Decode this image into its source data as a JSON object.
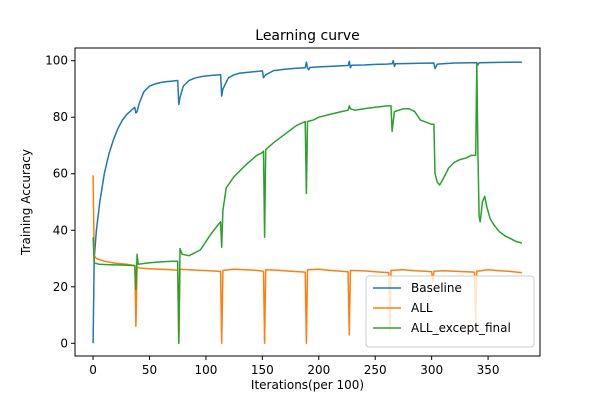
{
  "chart_data": {
    "type": "line",
    "title": "Learning curve",
    "xlabel": "Iterations(per 100)",
    "ylabel": "Training Accuracy",
    "xlim": [
      -16,
      396
    ],
    "ylim": [
      -4.5,
      104.5
    ],
    "xticks": [
      0,
      50,
      100,
      150,
      200,
      250,
      300,
      350
    ],
    "yticks": [
      0,
      20,
      40,
      60,
      80,
      100
    ],
    "legend_position": "lower-right",
    "grid": false,
    "series": [
      {
        "name": "Baseline",
        "color": "#1f77b4",
        "points": [
          [
            0,
            0
          ],
          [
            1,
            30
          ],
          [
            3,
            40
          ],
          [
            6,
            50
          ],
          [
            10,
            60
          ],
          [
            14,
            67
          ],
          [
            18,
            72
          ],
          [
            22,
            76
          ],
          [
            26,
            79
          ],
          [
            30,
            81
          ],
          [
            34,
            82.5
          ],
          [
            37,
            83.5
          ],
          [
            38,
            81.5
          ],
          [
            39,
            82
          ],
          [
            41,
            85
          ],
          [
            45,
            89
          ],
          [
            50,
            91
          ],
          [
            55,
            91.8
          ],
          [
            60,
            92.3
          ],
          [
            65,
            92.6
          ],
          [
            70,
            92.8
          ],
          [
            75,
            93
          ],
          [
            76,
            84.5
          ],
          [
            77,
            87
          ],
          [
            80,
            91
          ],
          [
            85,
            93
          ],
          [
            90,
            93.8
          ],
          [
            95,
            94.3
          ],
          [
            100,
            94.6
          ],
          [
            105,
            94.8
          ],
          [
            113,
            95
          ],
          [
            114,
            87.5
          ],
          [
            115,
            90
          ],
          [
            120,
            94
          ],
          [
            125,
            95
          ],
          [
            130,
            95.6
          ],
          [
            140,
            96
          ],
          [
            150,
            96.4
          ],
          [
            151,
            94
          ],
          [
            153,
            95
          ],
          [
            160,
            96.5
          ],
          [
            170,
            97
          ],
          [
            180,
            97.3
          ],
          [
            188,
            97.5
          ],
          [
            189,
            99.5
          ],
          [
            190,
            97.5
          ],
          [
            191,
            96.8
          ],
          [
            192,
            97.6
          ],
          [
            200,
            97.8
          ],
          [
            210,
            98
          ],
          [
            220,
            98.2
          ],
          [
            226,
            98.3
          ],
          [
            227,
            99.8
          ],
          [
            228,
            97.5
          ],
          [
            229,
            98.4
          ],
          [
            240,
            98.5
          ],
          [
            250,
            98.7
          ],
          [
            260,
            98.8
          ],
          [
            265,
            98.9
          ],
          [
            266,
            100
          ],
          [
            267,
            98
          ],
          [
            268,
            98.9
          ],
          [
            280,
            99
          ],
          [
            290,
            99.1
          ],
          [
            302,
            99.2
          ],
          [
            303,
            97.2
          ],
          [
            305,
            98.8
          ],
          [
            320,
            99.2
          ],
          [
            335,
            99.3
          ],
          [
            340,
            99.3
          ],
          [
            341,
            98.5
          ],
          [
            342,
            99.3
          ],
          [
            360,
            99.4
          ],
          [
            380,
            99.5
          ]
        ]
      },
      {
        "name": "ALL",
        "color": "#ff7f0e",
        "points": [
          [
            0,
            59.5
          ],
          [
            1,
            31
          ],
          [
            3,
            30
          ],
          [
            10,
            29
          ],
          [
            20,
            28.3
          ],
          [
            30,
            28
          ],
          [
            37,
            27.5
          ],
          [
            38,
            6
          ],
          [
            39,
            27
          ],
          [
            42,
            26.6
          ],
          [
            50,
            26.4
          ],
          [
            60,
            26.2
          ],
          [
            70,
            26
          ],
          [
            75,
            25.8
          ],
          [
            76,
            0
          ],
          [
            77,
            26.2
          ],
          [
            85,
            26
          ],
          [
            95,
            25.8
          ],
          [
            105,
            25.6
          ],
          [
            113,
            25.4
          ],
          [
            114,
            0
          ],
          [
            115,
            25.8
          ],
          [
            125,
            26.2
          ],
          [
            135,
            26
          ],
          [
            145,
            25.8
          ],
          [
            151,
            25.5
          ],
          [
            152,
            0
          ],
          [
            153,
            26
          ],
          [
            165,
            25.8
          ],
          [
            175,
            25.5
          ],
          [
            188,
            25.2
          ],
          [
            189,
            0
          ],
          [
            190,
            26
          ],
          [
            200,
            26.2
          ],
          [
            210,
            25.8
          ],
          [
            220,
            25.5
          ],
          [
            226,
            25.3
          ],
          [
            227,
            3
          ],
          [
            228,
            25.8
          ],
          [
            240,
            25.6
          ],
          [
            250,
            25.3
          ],
          [
            262,
            25
          ],
          [
            263,
            4.5
          ],
          [
            264,
            25.8
          ],
          [
            275,
            26
          ],
          [
            285,
            25.7
          ],
          [
            295,
            25.5
          ],
          [
            300,
            25.3
          ],
          [
            301,
            21.5
          ],
          [
            302,
            25.5
          ],
          [
            310,
            25.7
          ],
          [
            320,
            25.5
          ],
          [
            330,
            25.3
          ],
          [
            338,
            25.2
          ],
          [
            339,
            6.5
          ],
          [
            340,
            25.5
          ],
          [
            350,
            26
          ],
          [
            360,
            25.7
          ],
          [
            370,
            25.4
          ],
          [
            380,
            25
          ]
        ]
      },
      {
        "name": "ALL_except_final",
        "color": "#2ca02c",
        "points": [
          [
            0,
            37.5
          ],
          [
            1,
            28.5
          ],
          [
            5,
            28
          ],
          [
            15,
            27.8
          ],
          [
            25,
            27.7
          ],
          [
            37,
            27.5
          ],
          [
            38,
            19
          ],
          [
            39,
            31.5
          ],
          [
            40,
            28
          ],
          [
            50,
            28.5
          ],
          [
            60,
            28.8
          ],
          [
            70,
            29
          ],
          [
            75,
            29
          ],
          [
            76,
            0
          ],
          [
            77,
            33.5
          ],
          [
            79,
            31.5
          ],
          [
            85,
            31
          ],
          [
            95,
            33
          ],
          [
            100,
            36
          ],
          [
            105,
            39
          ],
          [
            110,
            41.5
          ],
          [
            113,
            43
          ],
          [
            114,
            34
          ],
          [
            115,
            47
          ],
          [
            118,
            55
          ],
          [
            125,
            59
          ],
          [
            135,
            63
          ],
          [
            145,
            66.5
          ],
          [
            150,
            67.5
          ],
          [
            151,
            68
          ],
          [
            152,
            37.5
          ],
          [
            153,
            68.5
          ],
          [
            160,
            71
          ],
          [
            170,
            74
          ],
          [
            180,
            77
          ],
          [
            188,
            78.5
          ],
          [
            189,
            53
          ],
          [
            190,
            78.5
          ],
          [
            195,
            79
          ],
          [
            200,
            80
          ],
          [
            210,
            81
          ],
          [
            220,
            82
          ],
          [
            226,
            82.5
          ],
          [
            227,
            84
          ],
          [
            228,
            83
          ],
          [
            232,
            82.5
          ],
          [
            240,
            83
          ],
          [
            250,
            83.5
          ],
          [
            260,
            84
          ],
          [
            264,
            84
          ],
          [
            265,
            75
          ],
          [
            267,
            82
          ],
          [
            275,
            83
          ],
          [
            280,
            83
          ],
          [
            285,
            82
          ],
          [
            290,
            79
          ],
          [
            300,
            77.5
          ],
          [
            302,
            77.5
          ],
          [
            303,
            60
          ],
          [
            305,
            57
          ],
          [
            307,
            56
          ],
          [
            310,
            58
          ],
          [
            315,
            62
          ],
          [
            320,
            64
          ],
          [
            325,
            65
          ],
          [
            330,
            65.5
          ],
          [
            335,
            66.5
          ],
          [
            339,
            66.5
          ],
          [
            340,
            99
          ],
          [
            341,
            68
          ],
          [
            342,
            45
          ],
          [
            343,
            43
          ],
          [
            345,
            50
          ],
          [
            347,
            52
          ],
          [
            349,
            48
          ],
          [
            352,
            44
          ],
          [
            355,
            42
          ],
          [
            360,
            39.5
          ],
          [
            365,
            38
          ],
          [
            370,
            37
          ],
          [
            375,
            36
          ],
          [
            380,
            35.5
          ]
        ]
      }
    ]
  }
}
